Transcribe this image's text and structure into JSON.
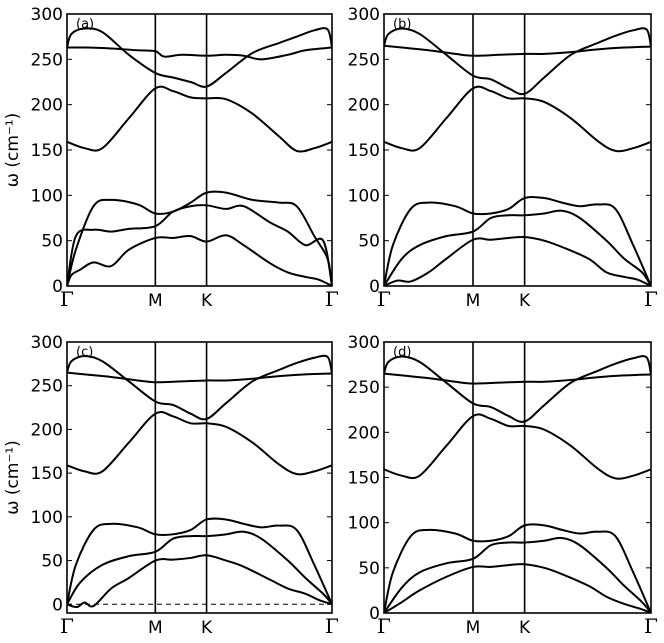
{
  "chart_data": [
    {
      "type": "line",
      "panel_label": "(a)",
      "ylabel": "ω (cm⁻¹)",
      "ylim": [
        0,
        300
      ],
      "yticks": [
        0,
        50,
        100,
        150,
        200,
        250,
        300
      ],
      "x_symmetry_labels": [
        "Γ",
        "M",
        "K",
        "Γ"
      ],
      "x_symmetry_positions": [
        0,
        1,
        1.58,
        3.0
      ],
      "xlim": [
        0,
        3.0
      ],
      "zero_dashed_line": false,
      "series": [
        {
          "x": [
            0,
            0.05,
            0.15,
            0.3,
            0.5,
            0.7,
            1.0,
            1.2,
            1.4,
            1.58,
            1.8,
            2.0,
            2.3,
            2.5,
            2.7,
            2.85,
            3.0
          ],
          "y": [
            0,
            12,
            18,
            26,
            22,
            40,
            53,
            53,
            55,
            49,
            56,
            45,
            25,
            15,
            10,
            7,
            0
          ]
        },
        {
          "x": [
            0,
            0.1,
            0.3,
            0.5,
            0.7,
            1.0,
            1.2,
            1.4,
            1.58,
            1.8,
            2.0,
            2.3,
            2.5,
            2.7,
            2.9,
            3.0
          ],
          "y": [
            0,
            55,
            62,
            60,
            63,
            66,
            82,
            88,
            89,
            85,
            88,
            70,
            60,
            45,
            50,
            0
          ]
        },
        {
          "x": [
            0,
            0.1,
            0.3,
            0.5,
            0.8,
            1.0,
            1.2,
            1.4,
            1.58,
            1.8,
            2.1,
            2.4,
            2.6,
            2.8,
            2.95,
            3.0
          ],
          "y": [
            0,
            40,
            88,
            95,
            90,
            80,
            82,
            92,
            103,
            103,
            95,
            92,
            88,
            55,
            30,
            0
          ]
        },
        {
          "x": [
            0,
            0.2,
            0.4,
            0.7,
            1.0,
            1.2,
            1.4,
            1.58,
            1.8,
            2.1,
            2.4,
            2.6,
            2.8,
            3.0
          ],
          "y": [
            159,
            152,
            152,
            185,
            218,
            215,
            208,
            207,
            206,
            190,
            165,
            149,
            152,
            159
          ]
        },
        {
          "x": [
            0,
            0.2,
            0.5,
            0.8,
            1.0,
            1.1,
            1.3,
            1.58,
            1.8,
            2.0,
            2.2,
            2.5,
            2.7,
            3.0
          ],
          "y": [
            263,
            263,
            262,
            260,
            259,
            253,
            255,
            254,
            255,
            254,
            250,
            255,
            260,
            263
          ]
        },
        {
          "x": [
            0,
            0.05,
            0.2,
            0.4,
            0.7,
            1.0,
            1.2,
            1.4,
            1.58,
            1.8,
            2.1,
            2.4,
            2.6,
            2.8,
            2.95,
            3.0
          ],
          "y": [
            263,
            278,
            284,
            280,
            255,
            235,
            230,
            225,
            220,
            235,
            257,
            268,
            275,
            282,
            283,
            263
          ]
        }
      ]
    },
    {
      "type": "line",
      "panel_label": "(b)",
      "ylim": [
        0,
        300
      ],
      "yticks": [
        0,
        50,
        100,
        150,
        200,
        250,
        300
      ],
      "x_symmetry_labels": [
        "Γ",
        "M",
        "K",
        "Γ"
      ],
      "x_symmetry_positions": [
        0,
        1,
        1.58,
        3.0
      ],
      "xlim": [
        0,
        3.0
      ],
      "zero_dashed_line": false,
      "series": [
        {
          "x": [
            0,
            0.15,
            0.3,
            0.5,
            0.7,
            1.0,
            1.2,
            1.4,
            1.58,
            1.8,
            2.0,
            2.3,
            2.5,
            2.7,
            2.85,
            3.0
          ],
          "y": [
            0,
            6,
            5,
            15,
            30,
            51,
            51,
            53,
            54,
            50,
            43,
            30,
            15,
            10,
            7,
            0
          ]
        },
        {
          "x": [
            0,
            0.2,
            0.4,
            0.7,
            1.0,
            1.2,
            1.4,
            1.58,
            1.8,
            2.0,
            2.2,
            2.5,
            2.7,
            2.9,
            3.0
          ],
          "y": [
            0,
            30,
            45,
            55,
            60,
            75,
            78,
            78,
            80,
            83,
            75,
            50,
            30,
            15,
            0
          ]
        },
        {
          "x": [
            0,
            0.1,
            0.3,
            0.5,
            0.8,
            1.0,
            1.2,
            1.4,
            1.58,
            1.8,
            2.0,
            2.2,
            2.4,
            2.6,
            2.8,
            3.0
          ],
          "y": [
            0,
            45,
            85,
            92,
            88,
            80,
            80,
            85,
            97,
            97,
            92,
            88,
            90,
            85,
            45,
            0
          ]
        },
        {
          "x": [
            0,
            0.2,
            0.4,
            0.7,
            1.0,
            1.2,
            1.4,
            1.58,
            1.8,
            2.1,
            2.4,
            2.6,
            2.8,
            3.0
          ],
          "y": [
            159,
            152,
            152,
            185,
            218,
            215,
            207,
            207,
            203,
            185,
            160,
            149,
            152,
            159
          ]
        },
        {
          "x": [
            0,
            0.2,
            0.5,
            0.8,
            1.0,
            1.3,
            1.58,
            1.8,
            2.1,
            2.4,
            2.7,
            3.0
          ],
          "y": [
            265,
            263,
            260,
            256,
            254,
            255,
            256,
            256,
            258,
            261,
            263,
            264
          ]
        },
        {
          "x": [
            0,
            0.05,
            0.2,
            0.4,
            0.7,
            1.0,
            1.2,
            1.4,
            1.58,
            1.8,
            2.1,
            2.4,
            2.6,
            2.8,
            2.95,
            3.0
          ],
          "y": [
            265,
            278,
            284,
            278,
            255,
            232,
            228,
            218,
            212,
            230,
            255,
            268,
            276,
            282,
            283,
            264
          ]
        }
      ]
    },
    {
      "type": "line",
      "panel_label": "(c)",
      "ylabel": "ω (cm⁻¹)",
      "ylim": [
        -10,
        300
      ],
      "yticks": [
        0,
        50,
        100,
        150,
        200,
        250,
        300
      ],
      "x_symmetry_labels": [
        "Γ",
        "M",
        "K",
        "Γ"
      ],
      "x_symmetry_positions": [
        0,
        1,
        1.58,
        3.0
      ],
      "xlim": [
        0,
        3.0
      ],
      "zero_dashed_line": true,
      "series": [
        {
          "x": [
            0,
            0.05,
            0.12,
            0.2,
            0.3,
            0.5,
            0.7,
            1.0,
            1.2,
            1.4,
            1.58,
            1.8,
            2.0,
            2.3,
            2.5,
            2.7,
            2.85,
            3.0
          ],
          "y": [
            0,
            -2,
            -3,
            2,
            -2,
            18,
            30,
            50,
            51,
            53,
            56,
            50,
            43,
            28,
            18,
            12,
            5,
            0
          ]
        },
        {
          "x": [
            0,
            0.15,
            0.4,
            0.7,
            1.0,
            1.2,
            1.4,
            1.58,
            1.8,
            2.0,
            2.2,
            2.5,
            2.7,
            2.9,
            3.0
          ],
          "y": [
            0,
            25,
            45,
            55,
            60,
            75,
            78,
            78,
            80,
            83,
            75,
            50,
            30,
            12,
            0
          ]
        },
        {
          "x": [
            0,
            0.1,
            0.3,
            0.5,
            0.8,
            1.0,
            1.2,
            1.4,
            1.58,
            1.8,
            2.0,
            2.2,
            2.4,
            2.6,
            2.8,
            3.0
          ],
          "y": [
            0,
            45,
            85,
            92,
            88,
            80,
            80,
            85,
            97,
            97,
            92,
            88,
            90,
            85,
            45,
            0
          ]
        },
        {
          "x": [
            0,
            0.2,
            0.4,
            0.7,
            1.0,
            1.2,
            1.4,
            1.58,
            1.8,
            2.1,
            2.4,
            2.6,
            2.8,
            3.0
          ],
          "y": [
            159,
            152,
            152,
            185,
            218,
            215,
            207,
            207,
            203,
            185,
            160,
            149,
            152,
            159
          ]
        },
        {
          "x": [
            0,
            0.2,
            0.5,
            0.8,
            1.0,
            1.3,
            1.58,
            1.8,
            2.1,
            2.4,
            2.7,
            3.0
          ],
          "y": [
            265,
            263,
            260,
            256,
            254,
            255,
            256,
            256,
            258,
            261,
            263,
            264
          ]
        },
        {
          "x": [
            0,
            0.05,
            0.2,
            0.4,
            0.7,
            1.0,
            1.2,
            1.4,
            1.58,
            1.8,
            2.1,
            2.4,
            2.6,
            2.8,
            2.95,
            3.0
          ],
          "y": [
            265,
            278,
            284,
            278,
            255,
            232,
            228,
            218,
            212,
            230,
            255,
            268,
            276,
            282,
            283,
            264
          ]
        }
      ]
    },
    {
      "type": "line",
      "panel_label": "(d)",
      "ylim": [
        0,
        300
      ],
      "yticks": [
        0,
        50,
        100,
        150,
        200,
        250,
        300
      ],
      "x_symmetry_labels": [
        "Γ",
        "M",
        "K",
        "Γ"
      ],
      "x_symmetry_positions": [
        0,
        1,
        1.58,
        3.0
      ],
      "xlim": [
        0,
        3.0
      ],
      "zero_dashed_line": false,
      "series": [
        {
          "x": [
            0,
            0.2,
            0.4,
            0.7,
            1.0,
            1.2,
            1.4,
            1.58,
            1.8,
            2.0,
            2.3,
            2.5,
            2.7,
            2.9,
            3.0
          ],
          "y": [
            0,
            12,
            25,
            40,
            51,
            51,
            53,
            54,
            50,
            43,
            30,
            18,
            10,
            4,
            0
          ]
        },
        {
          "x": [
            0,
            0.2,
            0.4,
            0.7,
            1.0,
            1.2,
            1.4,
            1.58,
            1.8,
            2.0,
            2.2,
            2.5,
            2.7,
            2.9,
            3.0
          ],
          "y": [
            0,
            28,
            45,
            55,
            60,
            75,
            78,
            78,
            80,
            83,
            75,
            50,
            30,
            12,
            0
          ]
        },
        {
          "x": [
            0,
            0.1,
            0.3,
            0.5,
            0.8,
            1.0,
            1.2,
            1.4,
            1.58,
            1.8,
            2.0,
            2.2,
            2.4,
            2.6,
            2.8,
            3.0
          ],
          "y": [
            0,
            45,
            85,
            92,
            88,
            80,
            80,
            85,
            97,
            97,
            92,
            88,
            90,
            85,
            45,
            0
          ]
        },
        {
          "x": [
            0,
            0.2,
            0.4,
            0.7,
            1.0,
            1.2,
            1.4,
            1.58,
            1.8,
            2.1,
            2.4,
            2.6,
            2.8,
            3.0
          ],
          "y": [
            159,
            152,
            152,
            185,
            218,
            215,
            207,
            207,
            203,
            185,
            160,
            149,
            152,
            159
          ]
        },
        {
          "x": [
            0,
            0.2,
            0.5,
            0.8,
            1.0,
            1.3,
            1.58,
            1.8,
            2.1,
            2.4,
            2.7,
            3.0
          ],
          "y": [
            265,
            263,
            260,
            256,
            254,
            255,
            256,
            256,
            258,
            261,
            263,
            264
          ]
        },
        {
          "x": [
            0,
            0.05,
            0.2,
            0.4,
            0.7,
            1.0,
            1.2,
            1.4,
            1.58,
            1.8,
            2.1,
            2.4,
            2.6,
            2.8,
            2.95,
            3.0
          ],
          "y": [
            265,
            278,
            284,
            278,
            255,
            232,
            228,
            218,
            212,
            230,
            255,
            268,
            276,
            282,
            283,
            264
          ]
        }
      ]
    }
  ]
}
